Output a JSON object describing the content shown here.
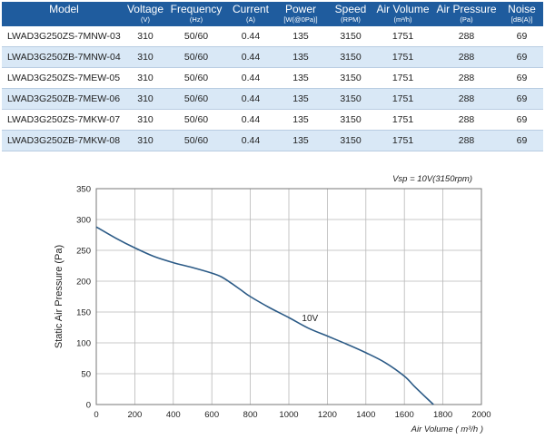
{
  "table": {
    "columns": [
      {
        "label": "Model",
        "unit": ""
      },
      {
        "label": "Voltage",
        "unit": "(V)"
      },
      {
        "label": "Frequency",
        "unit": "(Hz)"
      },
      {
        "label": "Current",
        "unit": "(A)"
      },
      {
        "label": "Power",
        "unit": "[W(@0Pa)]"
      },
      {
        "label": "Speed",
        "unit": "(RPM)"
      },
      {
        "label": "Air Volume",
        "unit": "(m³/h)"
      },
      {
        "label": "Air Pressure",
        "unit": "(Pa)"
      },
      {
        "label": "Noise",
        "unit": "[dB(A)]"
      }
    ],
    "rows": [
      [
        "LWAD3G250ZS-7MNW-03",
        "310",
        "50/60",
        "0.44",
        "135",
        "3150",
        "1751",
        "288",
        "69"
      ],
      [
        "LWAD3G250ZB-7MNW-04",
        "310",
        "50/60",
        "0.44",
        "135",
        "3150",
        "1751",
        "288",
        "69"
      ],
      [
        "LWAD3G250ZS-7MEW-05",
        "310",
        "50/60",
        "0.44",
        "135",
        "3150",
        "1751",
        "288",
        "69"
      ],
      [
        "LWAD3G250ZB-7MEW-06",
        "310",
        "50/60",
        "0.44",
        "135",
        "3150",
        "1751",
        "288",
        "69"
      ],
      [
        "LWAD3G250ZS-7MKW-07",
        "310",
        "50/60",
        "0.44",
        "135",
        "3150",
        "1751",
        "288",
        "69"
      ],
      [
        "LWAD3G250ZB-7MKW-08",
        "310",
        "50/60",
        "0.44",
        "135",
        "3150",
        "1751",
        "288",
        "69"
      ]
    ]
  },
  "chart_data": {
    "type": "line",
    "title": "Vsp = 10V(3150rpm)",
    "xlabel": "Air Volume ( m³/h )",
    "ylabel": "Static Air Pressure  (Pa)",
    "xlim": [
      0,
      2000
    ],
    "ylim": [
      0,
      350
    ],
    "xticks": [
      "0",
      "200",
      "400",
      "600",
      "800",
      "1000",
      "1200",
      "1400",
      "1600",
      "1800",
      "2000"
    ],
    "yticks": [
      "0",
      "50",
      "100",
      "150",
      "200",
      "250",
      "300",
      "350"
    ],
    "grid": true,
    "line_color": "#2b5a86",
    "series": [
      {
        "name": "10V",
        "x": [
          0,
          100,
          200,
          300,
          400,
          500,
          600,
          650,
          700,
          750,
          800,
          900,
          1000,
          1100,
          1200,
          1300,
          1400,
          1500,
          1600,
          1650,
          1700,
          1751
        ],
        "y": [
          288,
          270,
          254,
          240,
          230,
          222,
          213,
          207,
          197,
          186,
          175,
          157,
          141,
          124,
          111,
          98,
          84,
          68,
          46,
          30,
          15,
          0
        ]
      }
    ]
  }
}
